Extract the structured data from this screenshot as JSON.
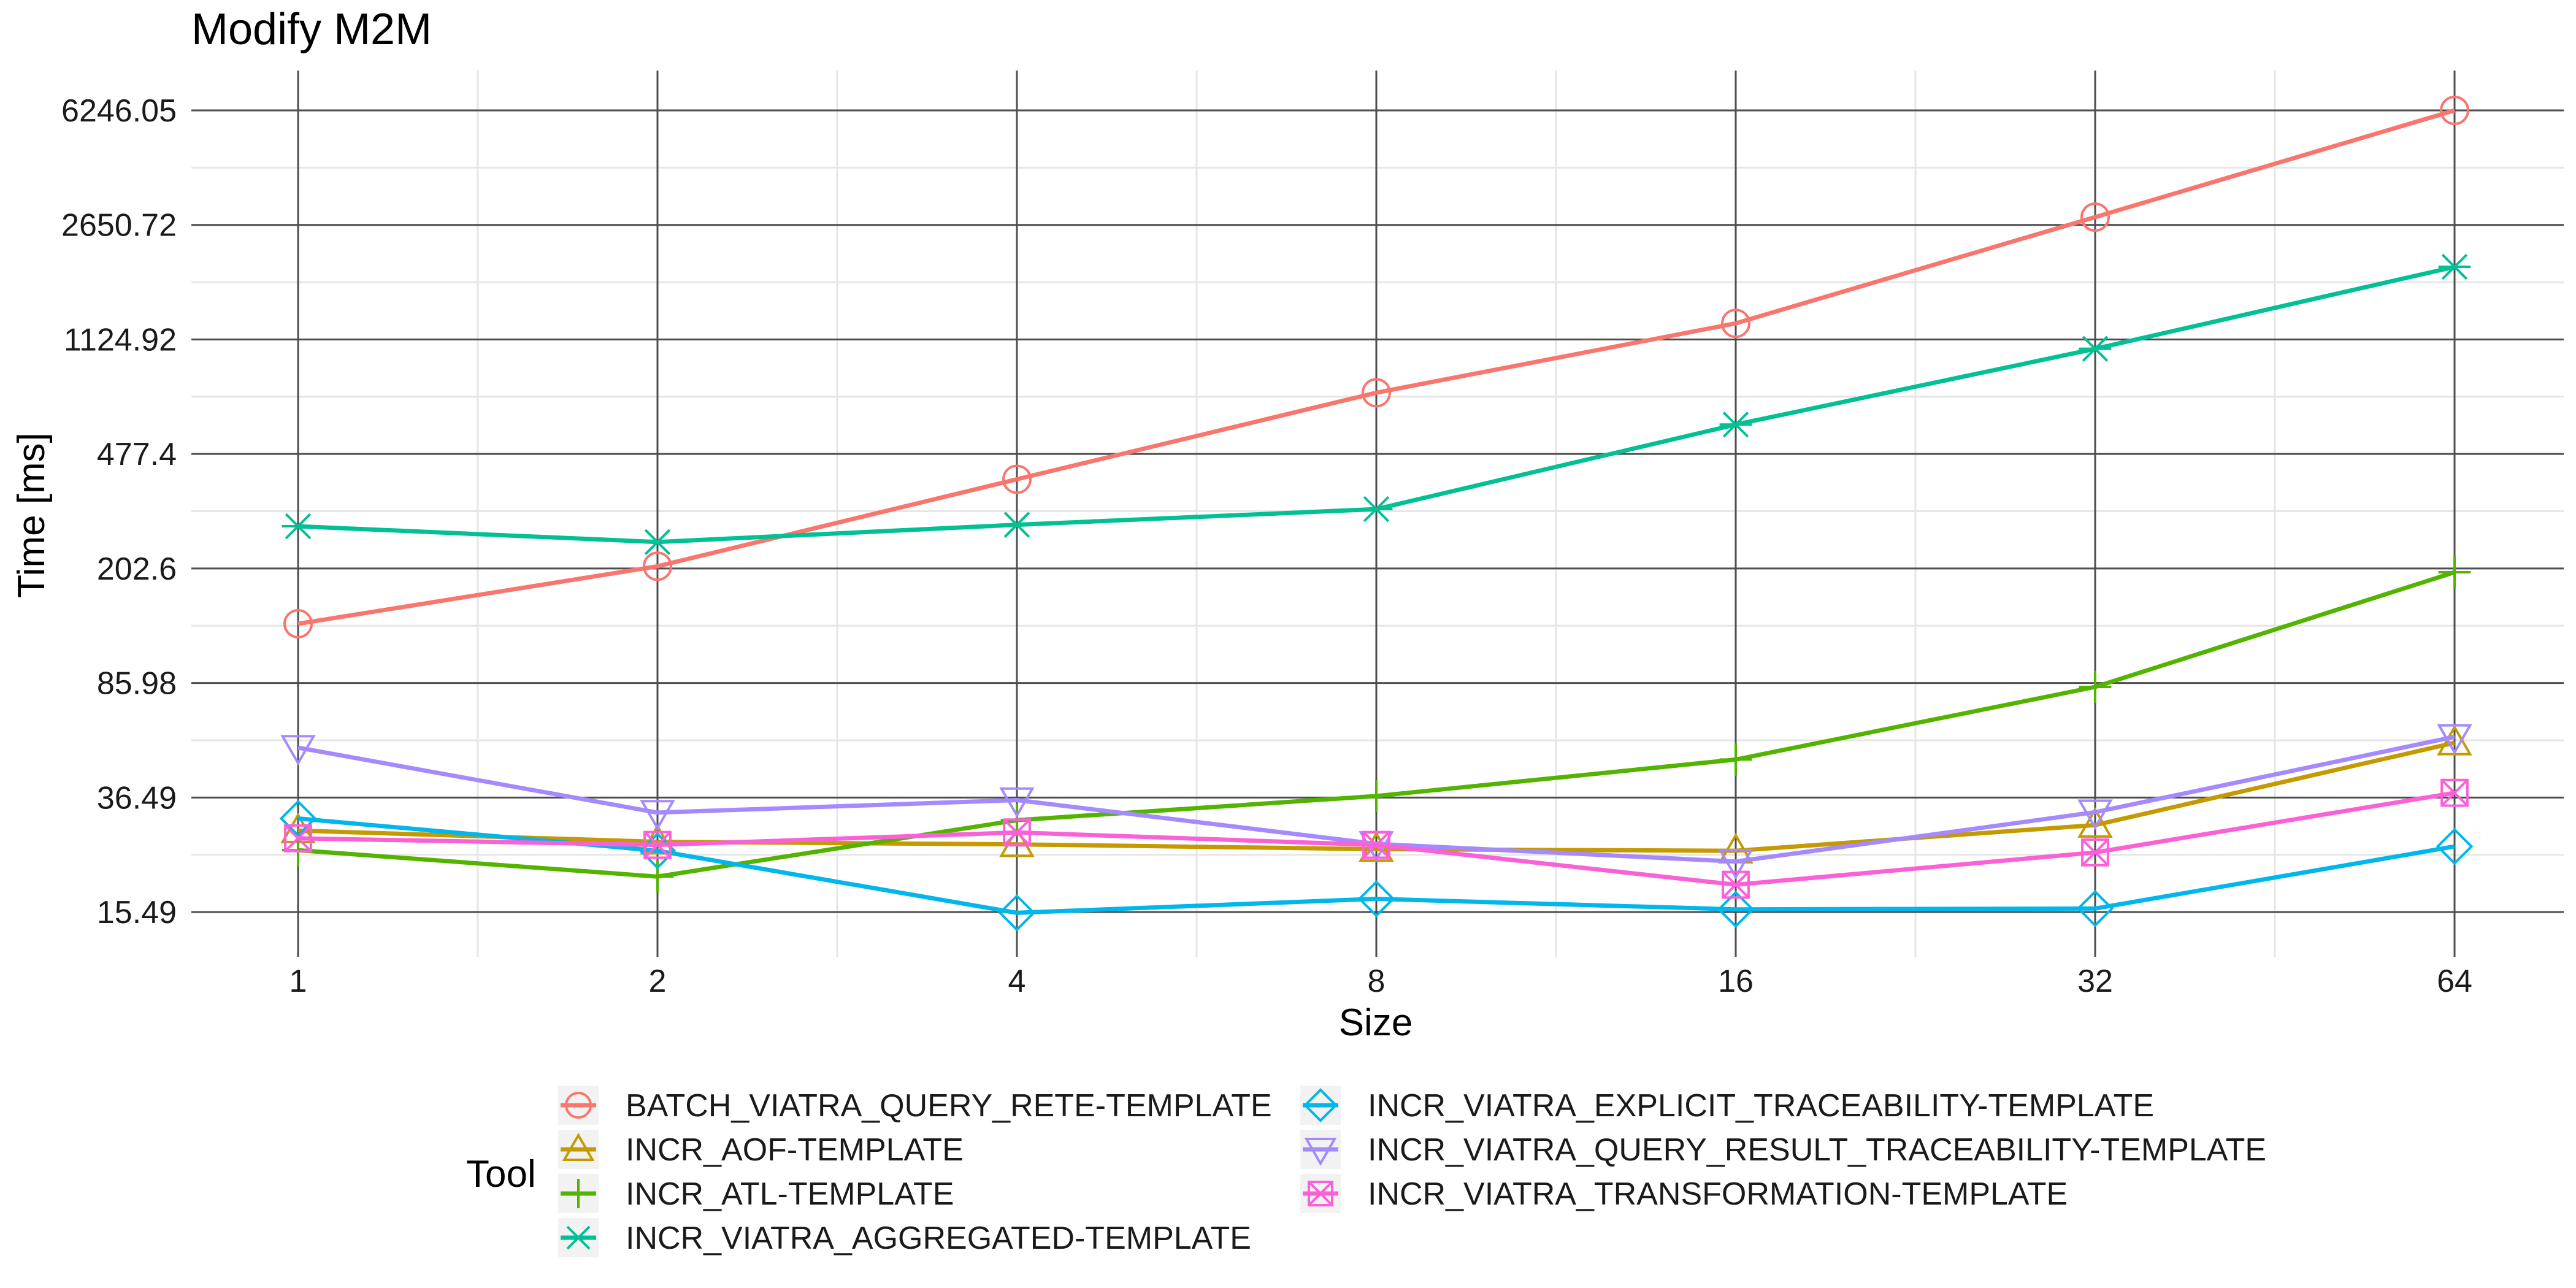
{
  "chart_data": {
    "type": "line",
    "title": "Modify M2M",
    "xlabel": "Size",
    "ylabel": "Time [ms]",
    "x_scale": "log2",
    "y_scale": "log",
    "x": [
      1,
      2,
      4,
      8,
      16,
      32,
      64
    ],
    "x_tick_labels": [
      "1",
      "2",
      "4",
      "8",
      "16",
      "32",
      "64"
    ],
    "y_tick_labels": [
      "15.49",
      "36.49",
      "85.98",
      "202.6",
      "477.4",
      "1124.92",
      "2650.72",
      "6246.05"
    ],
    "y_ticks": [
      15.49,
      36.49,
      85.98,
      202.6,
      477.4,
      1124.92,
      2650.72,
      6246.05
    ],
    "ylim": [
      12.8,
      7600
    ],
    "grid": true,
    "legend_title": "Tool",
    "legend_position": "bottom",
    "series": [
      {
        "name": "BATCH_VIATRA_QUERY_RETE-TEMPLATE",
        "color": "#F8766D",
        "marker": "circle",
        "values": [
          134,
          206,
          395,
          755,
          1269,
          2810,
          6246
        ]
      },
      {
        "name": "INCR_AOF-TEMPLATE",
        "color": "#C49A00",
        "marker": "triangle-up",
        "values": [
          28.5,
          26.2,
          25.7,
          24.8,
          24.5,
          29.7,
          55
        ]
      },
      {
        "name": "INCR_ATL-TEMPLATE",
        "color": "#53B400",
        "marker": "plus",
        "values": [
          24.6,
          20.2,
          30.8,
          36.9,
          48.5,
          83.5,
          197
        ]
      },
      {
        "name": "INCR_VIATRA_AGGREGATED-TEMPLATE",
        "color": "#00C094",
        "marker": "star",
        "values": [
          278,
          247,
          281,
          316,
          595,
          1049,
          1937
        ]
      },
      {
        "name": "INCR_VIATRA_EXPLICIT_TRACEABILITY-TEMPLATE",
        "color": "#00B6EB",
        "marker": "diamond",
        "values": [
          31.2,
          24.5,
          15.4,
          17.1,
          15.8,
          15.9,
          25.3
        ]
      },
      {
        "name": "INCR_VIATRA_QUERY_RESULT_TRACEABILITY-TEMPLATE",
        "color": "#A58AFF",
        "marker": "triangle-down",
        "values": [
          53,
          32.6,
          35.8,
          25.8,
          22.6,
          32.7,
          57.5
        ]
      },
      {
        "name": "INCR_VIATRA_TRANSFORMATION-TEMPLATE",
        "color": "#FB61D7",
        "marker": "square-x",
        "values": [
          26.9,
          25.6,
          28.1,
          25.6,
          19,
          24.2,
          37.8
        ]
      }
    ]
  }
}
